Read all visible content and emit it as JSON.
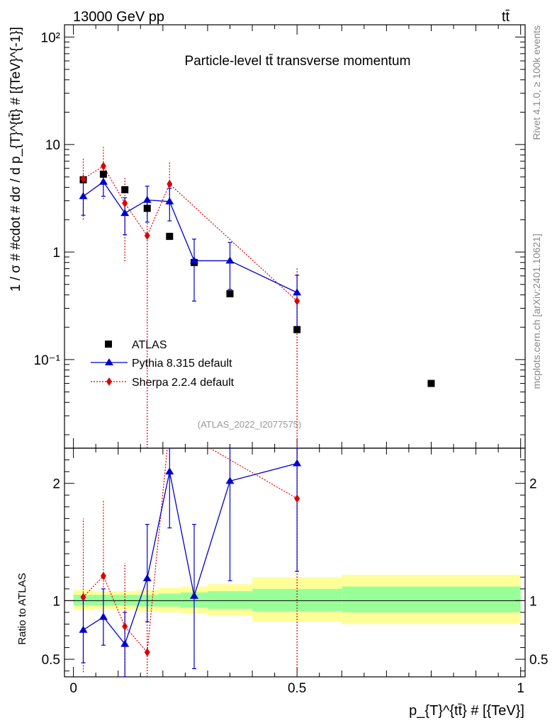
{
  "header": {
    "energy_label": "13000 GeV pp",
    "process_label": "tt̄"
  },
  "title": "Particle-level tt̄ transverse momentum",
  "side_labels": {
    "rivet": "Rivet 4.1.0, ≥ 100k events",
    "source": "mcplots.cern.ch [arXiv:2401.10621]"
  },
  "watermark": "(ATLAS_2022_I2077575)",
  "colors": {
    "data": "#000000",
    "pythia": "#0000cc",
    "sherpa": "#dd0000",
    "band_inner": "#99ff99",
    "band_outer": "#ffff99"
  },
  "chart_data": {
    "type": "scatter",
    "main": {
      "ylabel": "1 / σ # #cdot # dσ / d p_{T}^{tt̄} # [{TeV}^{-1}]",
      "yscale": "log",
      "ylim": [
        0.015,
        130
      ],
      "yticks": [
        {
          "value": 100,
          "label": "10²"
        },
        {
          "value": 10,
          "label": "10"
        },
        {
          "value": 1,
          "label": "1"
        },
        {
          "value": 0.1,
          "label": "10⁻¹"
        }
      ]
    },
    "ratio": {
      "ylabel": "Ratio to ATLAS",
      "ylim": [
        0.35,
        2.3
      ],
      "yticks": [
        {
          "value": 2,
          "label": "2"
        },
        {
          "value": 1,
          "label": "1"
        },
        {
          "value": 0.5,
          "label": "0.5"
        }
      ],
      "bins": [
        {
          "x1": 0.0,
          "x2": 0.045,
          "inner": [
            0.96,
            1.05
          ],
          "outer": [
            0.92,
            1.09
          ]
        },
        {
          "x1": 0.045,
          "x2": 0.09,
          "inner": [
            0.96,
            1.05
          ],
          "outer": [
            0.93,
            1.08
          ]
        },
        {
          "x1": 0.09,
          "x2": 0.14,
          "inner": [
            0.96,
            1.05
          ],
          "outer": [
            0.92,
            1.08
          ]
        },
        {
          "x1": 0.14,
          "x2": 0.19,
          "inner": [
            0.95,
            1.05
          ],
          "outer": [
            0.91,
            1.09
          ]
        },
        {
          "x1": 0.19,
          "x2": 0.24,
          "inner": [
            0.95,
            1.06
          ],
          "outer": [
            0.9,
            1.11
          ]
        },
        {
          "x1": 0.24,
          "x2": 0.3,
          "inner": [
            0.94,
            1.07
          ],
          "outer": [
            0.89,
            1.12
          ]
        },
        {
          "x1": 0.3,
          "x2": 0.4,
          "inner": [
            0.93,
            1.08
          ],
          "outer": [
            0.87,
            1.14
          ]
        },
        {
          "x1": 0.4,
          "x2": 0.6,
          "inner": [
            0.91,
            1.1
          ],
          "outer": [
            0.82,
            1.2
          ]
        },
        {
          "x1": 0.6,
          "x2": 1.0,
          "inner": [
            0.9,
            1.12
          ],
          "outer": [
            0.8,
            1.22
          ]
        }
      ]
    },
    "x": {
      "label": "p_{T}^{tt̄} # [{TeV}]",
      "xlim": [
        -0.02,
        1.01
      ],
      "ticks": [
        {
          "value": 0,
          "label": "0"
        },
        {
          "value": 0.5,
          "label": "0.5"
        },
        {
          "value": 1,
          "label": "1"
        }
      ]
    },
    "series": [
      {
        "name": "ATLAS",
        "kind": "data",
        "x": [
          0.022,
          0.067,
          0.115,
          0.165,
          0.215,
          0.27,
          0.35,
          0.5,
          0.8
        ],
        "y": [
          4.7,
          5.3,
          3.8,
          2.55,
          1.4,
          0.8,
          0.41,
          0.19,
          0.06
        ]
      },
      {
        "name": "Pythia 8.315 default",
        "kind": "mc",
        "x": [
          0.022,
          0.067,
          0.115,
          0.165,
          0.215,
          0.27,
          0.35,
          0.5
        ],
        "xlo": [
          0.0,
          0.045,
          0.09,
          0.14,
          0.19,
          0.24,
          0.3,
          0.4
        ],
        "xhi": [
          0.045,
          0.09,
          0.14,
          0.19,
          0.24,
          0.3,
          0.4,
          0.6
        ],
        "y": [
          3.3,
          4.5,
          2.3,
          3.05,
          2.95,
          0.83,
          0.83,
          0.42
        ],
        "ylo": [
          2.2,
          3.3,
          1.45,
          1.9,
          1.95,
          0.35,
          0.45,
          0.19
        ],
        "yhi": [
          4.6,
          5.6,
          3.2,
          4.1,
          3.9,
          1.32,
          1.23,
          0.61
        ],
        "ratio": [
          0.75,
          0.86,
          0.63,
          1.19,
          2.1,
          1.04,
          2.02,
          2.17
        ],
        "ratio_lo": [
          0.47,
          0.62,
          0.32,
          0.82,
          1.62,
          0.42,
          1.17,
          1.25
        ],
        "ratio_hi": [
          1.0,
          1.1,
          0.9,
          1.65,
          2.5,
          1.65,
          2.5,
          2.5
        ]
      },
      {
        "name": "Sherpa 2.2.4 default",
        "kind": "mc",
        "x": [
          0.022,
          0.067,
          0.115,
          0.165,
          0.215,
          0.5
        ],
        "y": [
          4.8,
          6.3,
          2.85,
          1.42,
          4.3,
          0.35
        ],
        "ylo": [
          2.0,
          3.1,
          0.82,
          0.01,
          2.5,
          0.01
        ],
        "yhi": [
          7.5,
          9.5,
          4.9,
          2.9,
          6.8,
          0.72
        ],
        "ratio": [
          1.03,
          1.21,
          0.78,
          0.56,
          2.5,
          1.87
        ],
        "ratio_lo": [
          0.39,
          0.63,
          0.25,
          0.25,
          2.5,
          0.25
        ],
        "ratio_hi": [
          1.7,
          1.85,
          1.32,
          1.14,
          2.5,
          2.5
        ]
      }
    ]
  }
}
